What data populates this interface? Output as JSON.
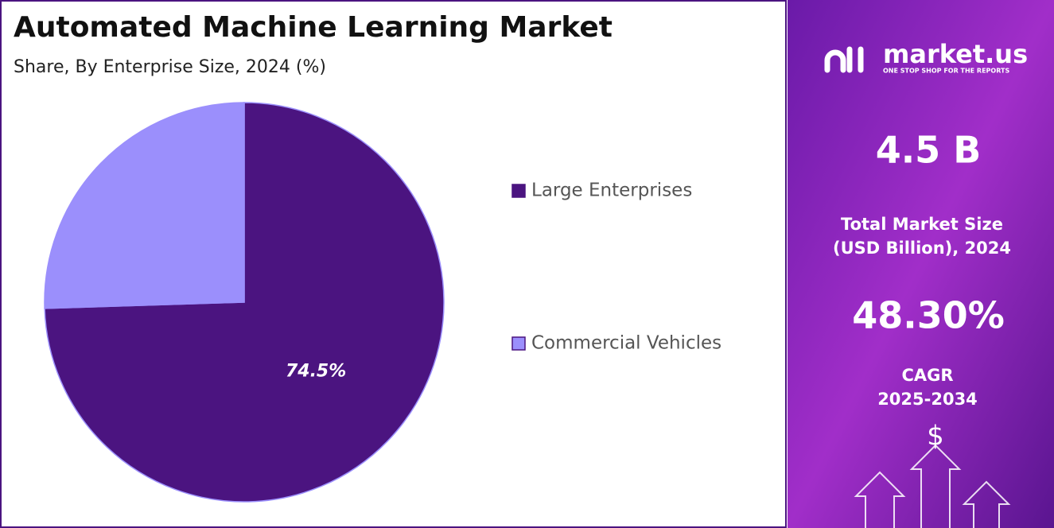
{
  "chart_data": {
    "type": "pie",
    "title": "Automated Machine Learning Market",
    "subtitle": "Share, By Enterprise Size, 2024 (%)",
    "categories": [
      "Large Enterprises",
      "Commercial Vehicles"
    ],
    "values": [
      74.5,
      25.5
    ],
    "value_labels": [
      "74.5%",
      null
    ],
    "colors": [
      "#4b1480",
      "#9b8ffc"
    ],
    "legend": "right"
  },
  "panel": {
    "brand": "market.us",
    "tagline": "ONE STOP SHOP FOR THE REPORTS",
    "market_size": "4.5 B",
    "market_size_label": [
      "Total Market Size",
      "(USD Billion), 2024"
    ],
    "cagr": "48.30%",
    "cagr_label": [
      "CAGR",
      "2025-2034"
    ],
    "currency": "$"
  }
}
